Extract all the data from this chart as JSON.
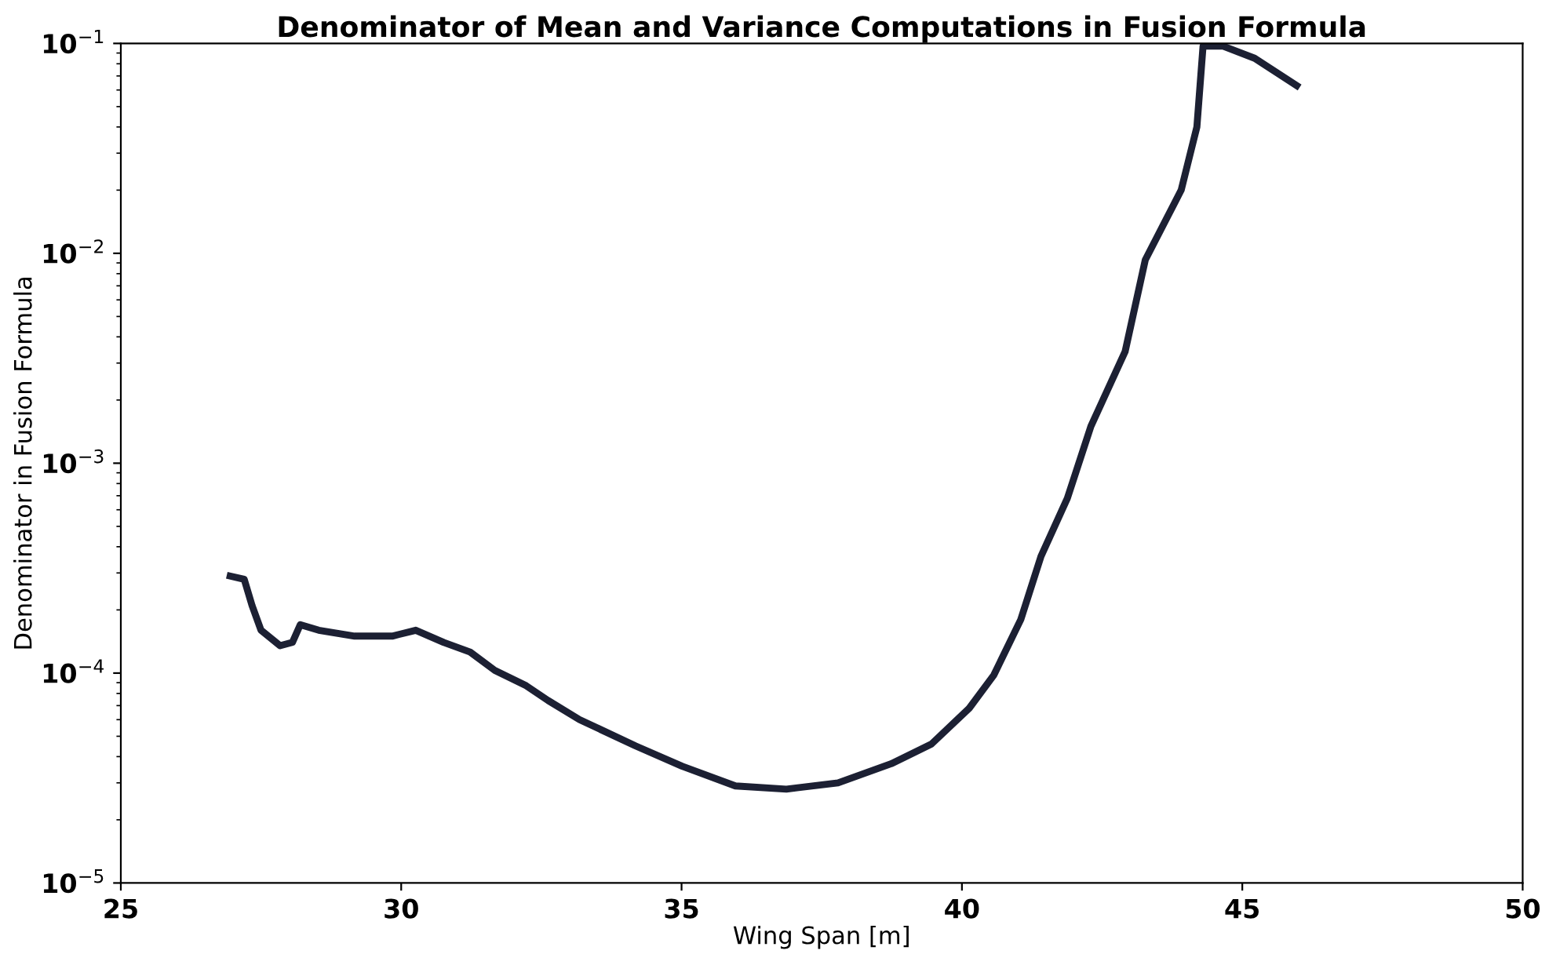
{
  "chart_data": {
    "type": "line",
    "title": "Denominator of Mean and Variance Computations in Fusion Formula",
    "xlabel": "Wing Span [m]",
    "ylabel": "Denominator in Fusion Formula",
    "log": "y",
    "grid": false,
    "legend": false,
    "marker": "none",
    "line_style": "solid",
    "xlim": [
      25,
      50
    ],
    "xticks": [
      25,
      30,
      35,
      40,
      45,
      50
    ],
    "ylim": [
      1e-05,
      0.1
    ],
    "yticks": [
      {
        "value": 1e-05,
        "label": "10$^{−5}$"
      },
      {
        "value": 0.0001,
        "label": "10$^{−4}$"
      },
      {
        "value": 0.001,
        "label": "10$^{−3}$"
      },
      {
        "value": 0.01,
        "label": "10$^{−2}$"
      },
      {
        "value": 0.1,
        "label": "10$^{−1}$"
      }
    ],
    "x": [
      26.95,
      27.2,
      27.34,
      27.5,
      27.84,
      28.06,
      28.2,
      28.53,
      29.17,
      29.84,
      30.26,
      30.76,
      31.23,
      31.67,
      32.23,
      32.62,
      33.18,
      34.18,
      35.01,
      35.96,
      36.87,
      37.79,
      38.74,
      39.46,
      40.13,
      40.57,
      41.05,
      41.41,
      41.88,
      42.3,
      42.91,
      43.27,
      43.91,
      44.19,
      44.3,
      44.66,
      45.22,
      45.97
    ],
    "series": [
      {
        "color": "#1c2033",
        "values": [
          0.00029,
          0.00028,
          0.00021,
          0.00016,
          0.000135,
          0.00014,
          0.00017,
          0.00016,
          0.00015,
          0.00015,
          0.00016,
          0.00014,
          0.000126,
          0.000103,
          8.7e-05,
          7.4e-05,
          6e-05,
          4.5e-05,
          3.6e-05,
          2.9e-05,
          2.8e-05,
          3e-05,
          3.7e-05,
          4.6e-05,
          6.8e-05,
          9.8e-05,
          0.00018,
          0.00036,
          0.00068,
          0.0015,
          0.0034,
          0.0093,
          0.02,
          0.04,
          0.097,
          0.097,
          0.085,
          0.063
        ]
      }
    ]
  }
}
